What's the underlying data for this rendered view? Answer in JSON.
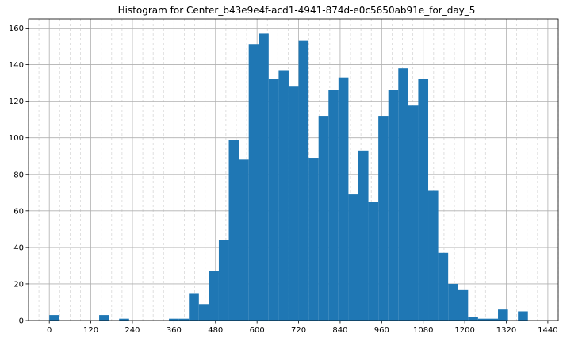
{
  "chart_data": {
    "type": "bar",
    "title": "Histogram for Center_b43e9e4f-acd1-4941-874d-e0c5650ab91e_for_day_5",
    "xlabel": "",
    "ylabel": "",
    "xlim": [
      -60,
      1470
    ],
    "ylim": [
      0,
      165
    ],
    "bin_width": 28.8,
    "bin_starts": [
      0,
      28.8,
      57.6,
      86.4,
      115.2,
      144,
      172.8,
      201.6,
      230.4,
      259.2,
      288,
      316.8,
      345.6,
      374.4,
      403.2,
      432,
      460.8,
      489.6,
      518.4,
      547.2,
      576,
      604.8,
      633.6,
      662.4,
      691.2,
      720,
      748.8,
      777.6,
      806.4,
      835.2,
      864,
      892.8,
      921.6,
      950.4,
      979.2,
      1008,
      1036.8,
      1065.6,
      1094.4,
      1123.2,
      1152,
      1180.8,
      1209.6,
      1238.4,
      1267.2,
      1296,
      1324.8,
      1353.6,
      1382.4,
      1411.2
    ],
    "values": [
      3,
      0,
      0,
      0,
      0,
      3,
      0,
      1,
      0,
      0,
      0,
      0,
      1,
      1,
      15,
      9,
      27,
      44,
      99,
      88,
      151,
      157,
      132,
      137,
      128,
      153,
      89,
      112,
      126,
      133,
      69,
      93,
      65,
      112,
      126,
      138,
      118,
      132,
      71,
      37,
      20,
      17,
      2,
      1,
      1,
      6,
      0,
      5,
      0,
      0
    ],
    "x_ticks": [
      0,
      120,
      240,
      360,
      480,
      600,
      720,
      840,
      960,
      1080,
      1200,
      1320,
      1440
    ],
    "y_ticks": [
      0,
      20,
      40,
      60,
      80,
      100,
      120,
      140,
      160
    ],
    "x_tick_labels": [
      "0",
      "120",
      "240",
      "360",
      "480",
      "600",
      "720",
      "840",
      "960",
      "1080",
      "1200",
      "1320",
      "1440"
    ],
    "y_tick_labels": [
      "0",
      "20",
      "40",
      "60",
      "80",
      "100",
      "120",
      "140",
      "160"
    ],
    "x_minor_step": 30,
    "grid": true,
    "bar_color": "#1f77b4",
    "grid_color": "#b0b0b0",
    "minor_grid_color": "#d8d8d8"
  }
}
